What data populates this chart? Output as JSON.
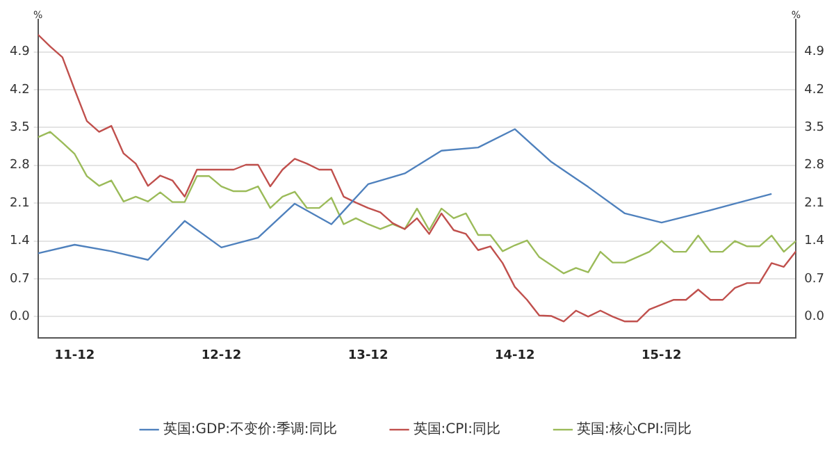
{
  "chart_data": {
    "type": "line",
    "ylabel": "%",
    "y2label": "%",
    "x": [
      "2011-09",
      "2011-10",
      "2011-11",
      "2011-12",
      "2012-01",
      "2012-02",
      "2012-03",
      "2012-04",
      "2012-05",
      "2012-06",
      "2012-07",
      "2012-08",
      "2012-09",
      "2012-10",
      "2012-11",
      "2012-12",
      "2013-01",
      "2013-02",
      "2013-03",
      "2013-04",
      "2013-05",
      "2013-06",
      "2013-07",
      "2013-08",
      "2013-09",
      "2013-10",
      "2013-11",
      "2013-12",
      "2014-01",
      "2014-02",
      "2014-03",
      "2014-04",
      "2014-05",
      "2014-06",
      "2014-07",
      "2014-08",
      "2014-09",
      "2014-10",
      "2014-11",
      "2014-12",
      "2015-01",
      "2015-02",
      "2015-03",
      "2015-04",
      "2015-05",
      "2015-06",
      "2015-07",
      "2015-08",
      "2015-09",
      "2015-10",
      "2015-11",
      "2015-12",
      "2016-01",
      "2016-02",
      "2016-03",
      "2016-04",
      "2016-05",
      "2016-06",
      "2016-07",
      "2016-08",
      "2016-09",
      "2016-10",
      "2016-11"
    ],
    "series": [
      {
        "name": "英国:GDP:不变价:季调:同比",
        "color": "#4f81bd",
        "x": [
          "2011-09",
          "2011-12",
          "2012-03",
          "2012-06",
          "2012-09",
          "2012-12",
          "2013-03",
          "2013-06",
          "2013-09",
          "2013-12",
          "2014-03",
          "2014-06",
          "2014-09",
          "2014-12",
          "2015-03",
          "2015-06",
          "2015-09",
          "2015-12",
          "2016-03",
          "2016-06",
          "2016-09"
        ],
        "values": [
          1.17,
          1.33,
          1.21,
          1.05,
          1.77,
          1.28,
          1.46,
          2.09,
          1.71,
          2.45,
          2.65,
          3.07,
          3.13,
          3.47,
          2.86,
          2.4,
          1.91,
          1.74,
          1.91,
          2.09,
          2.27
        ]
      },
      {
        "name": "英国:CPI:同比",
        "color": "#c0504d",
        "values": [
          5.22,
          5.0,
          4.8,
          4.2,
          3.62,
          3.42,
          3.53,
          3.02,
          2.83,
          2.42,
          2.61,
          2.52,
          2.22,
          2.72,
          2.72,
          2.72,
          2.72,
          2.81,
          2.81,
          2.41,
          2.72,
          2.92,
          2.83,
          2.72,
          2.72,
          2.22,
          2.11,
          2.01,
          1.93,
          1.73,
          1.62,
          1.82,
          1.53,
          1.91,
          1.6,
          1.53,
          1.23,
          1.3,
          0.99,
          0.55,
          0.31,
          0.02,
          0.01,
          -0.09,
          0.11,
          0.0,
          0.11,
          0.0,
          -0.09,
          -0.09,
          0.13,
          0.22,
          0.31,
          0.31,
          0.5,
          0.31,
          0.31,
          0.53,
          0.62,
          0.62,
          0.99,
          0.92,
          1.21
        ]
      },
      {
        "name": "英国:核心CPI:同比",
        "color": "#9bbb59",
        "values": [
          3.32,
          3.42,
          3.22,
          3.01,
          2.6,
          2.42,
          2.52,
          2.13,
          2.22,
          2.13,
          2.3,
          2.12,
          2.12,
          2.6,
          2.6,
          2.41,
          2.32,
          2.32,
          2.41,
          2.01,
          2.22,
          2.31,
          2.01,
          2.01,
          2.2,
          1.71,
          1.82,
          1.71,
          1.62,
          1.71,
          1.62,
          2.0,
          1.6,
          2.0,
          1.82,
          1.91,
          1.51,
          1.51,
          1.21,
          1.32,
          1.41,
          1.1,
          0.95,
          0.8,
          0.9,
          0.82,
          1.2,
          1.0,
          1.0,
          1.1,
          1.2,
          1.4,
          1.2,
          1.2,
          1.5,
          1.2,
          1.2,
          1.4,
          1.3,
          1.3,
          1.5,
          1.2,
          1.4
        ]
      }
    ],
    "xlim": [
      "2011-09",
      "2016-11"
    ],
    "xticks": [
      {
        "value": "2011-12",
        "label": "11-12"
      },
      {
        "value": "2012-12",
        "label": "12-12"
      },
      {
        "value": "2013-12",
        "label": "13-12"
      },
      {
        "value": "2014-12",
        "label": "14-12"
      },
      {
        "value": "2015-12",
        "label": "15-12"
      }
    ],
    "ylim": [
      -0.4,
      5.5
    ],
    "yticks": [
      {
        "value": 0,
        "label": "0.0"
      },
      0.7,
      1.4,
      2.1,
      2.8,
      3.5,
      4.2,
      4.9
    ],
    "y2lim": [
      -0.4,
      5.5
    ],
    "y2ticks": [
      {
        "value": 0,
        "label": "0.0"
      },
      0.7,
      1.4,
      2.1,
      2.8,
      3.5,
      4.2,
      4.9
    ],
    "grid": "y",
    "legend": "bottom",
    "marker": "none",
    "line_style": "solid"
  }
}
